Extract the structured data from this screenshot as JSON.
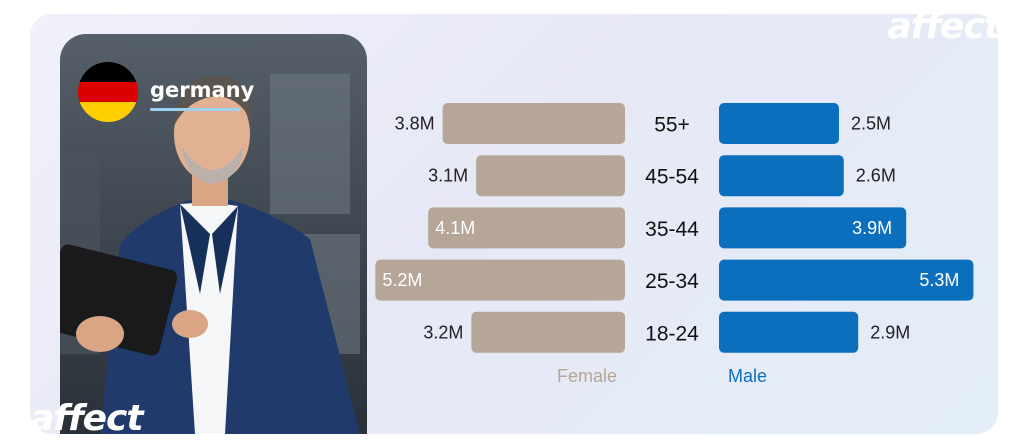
{
  "brand": "affect",
  "country": "germany",
  "flag_colors": [
    "#000000",
    "#dd0000",
    "#ffce00"
  ],
  "colors": {
    "female": "#b5a697",
    "male": "#0c6fbe"
  },
  "legend": {
    "female": "Female",
    "male": "Male"
  },
  "chart_data": {
    "type": "bar",
    "orientation": "horizontal-butterfly",
    "categories": [
      "55+",
      "45-54",
      "35-44",
      "25-34",
      "18-24"
    ],
    "series": [
      {
        "name": "Female",
        "values": [
          3.8,
          3.1,
          4.1,
          5.2,
          3.2
        ],
        "labels": [
          "3.8M",
          "3.1M",
          "4.1M",
          "5.2M",
          "3.2M"
        ]
      },
      {
        "name": "Male",
        "values": [
          2.5,
          2.6,
          3.9,
          5.3,
          2.9
        ],
        "labels": [
          "2.5M",
          "2.6M",
          "3.9M",
          "5.3M",
          "2.9M"
        ]
      }
    ],
    "unit": "M",
    "title": "",
    "xlabel": "",
    "ylabel": ""
  }
}
